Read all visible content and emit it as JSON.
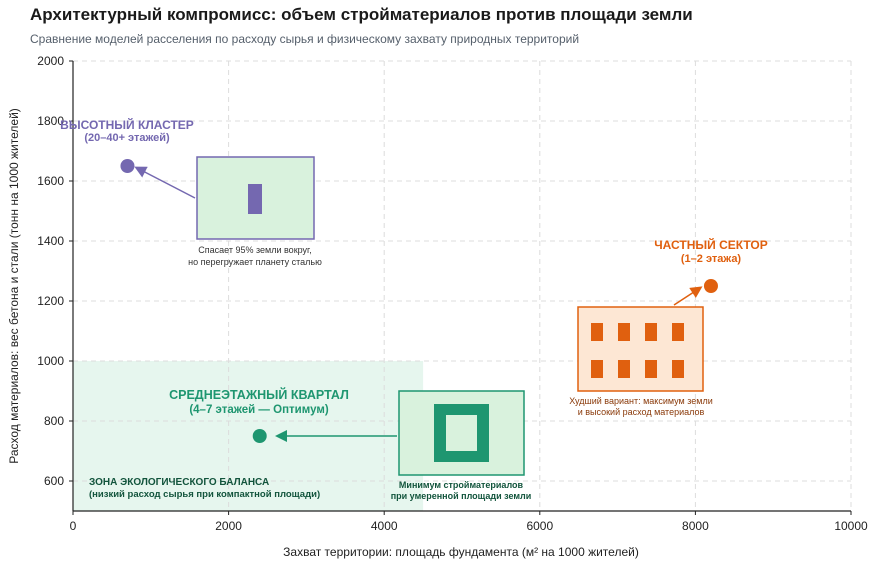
{
  "title": "Архитектурный компромисс: объем стройматериалов против площади земли",
  "subtitle": "Сравнение моделей расселения по расходу сырья и физическому захвату природных территорий",
  "chart_data": {
    "type": "scatter",
    "xlabel": "Захват территории: площадь фундамента (м² на 1000 жителей)",
    "ylabel": "Расход материалов: вес бетона и стали (тонн на 1000 жителей)",
    "xlim": [
      0,
      10000
    ],
    "ylim": [
      500,
      2000
    ],
    "xticks": [
      "0",
      "2000",
      "4000",
      "6000",
      "8000",
      "10000"
    ],
    "yticks": [
      "600",
      "800",
      "1000",
      "1200",
      "1400",
      "1600",
      "1800",
      "2000"
    ],
    "grid": true,
    "points": [
      {
        "name_line1": "ВЫСОТНЫЙ КЛАСТЕР",
        "name_line2": "(20–40+ этажей)",
        "x": 700,
        "y": 1650,
        "color": "#7468b0",
        "caption_line1": "Спасает 95% земли вокруг,",
        "caption_line2": "но перегружает планету сталью",
        "icon": "tower-icon"
      },
      {
        "name_line1": "СРЕДНЕЭТАЖНЫЙ КВАРТАЛ",
        "name_line2": "(4–7 этажей — Оптимум)",
        "x": 2400,
        "y": 750,
        "color": "#1e9670",
        "caption_line1": "Минимум стройматериалов",
        "caption_line2": "при умеренной площади земли",
        "icon": "courtyard-block-icon"
      },
      {
        "name_line1": "ЧАСТНЫЙ СЕКТОР",
        "name_line2": "(1–2 этажа)",
        "x": 8200,
        "y": 1250,
        "color": "#e0600f",
        "caption_line1": "Худший вариант: максимум земли",
        "caption_line2": "и высокий расход материалов",
        "icon": "houses-icon"
      }
    ],
    "zone": {
      "label_line1": "ЗОНА ЭКОЛОГИЧЕСКОГО БАЛАНСА",
      "label_line2": "(низкий расход сырья при компактной площади)",
      "x_range": [
        0,
        4500
      ],
      "y_range": [
        500,
        1000
      ],
      "color": "#e6f6ee"
    }
  }
}
